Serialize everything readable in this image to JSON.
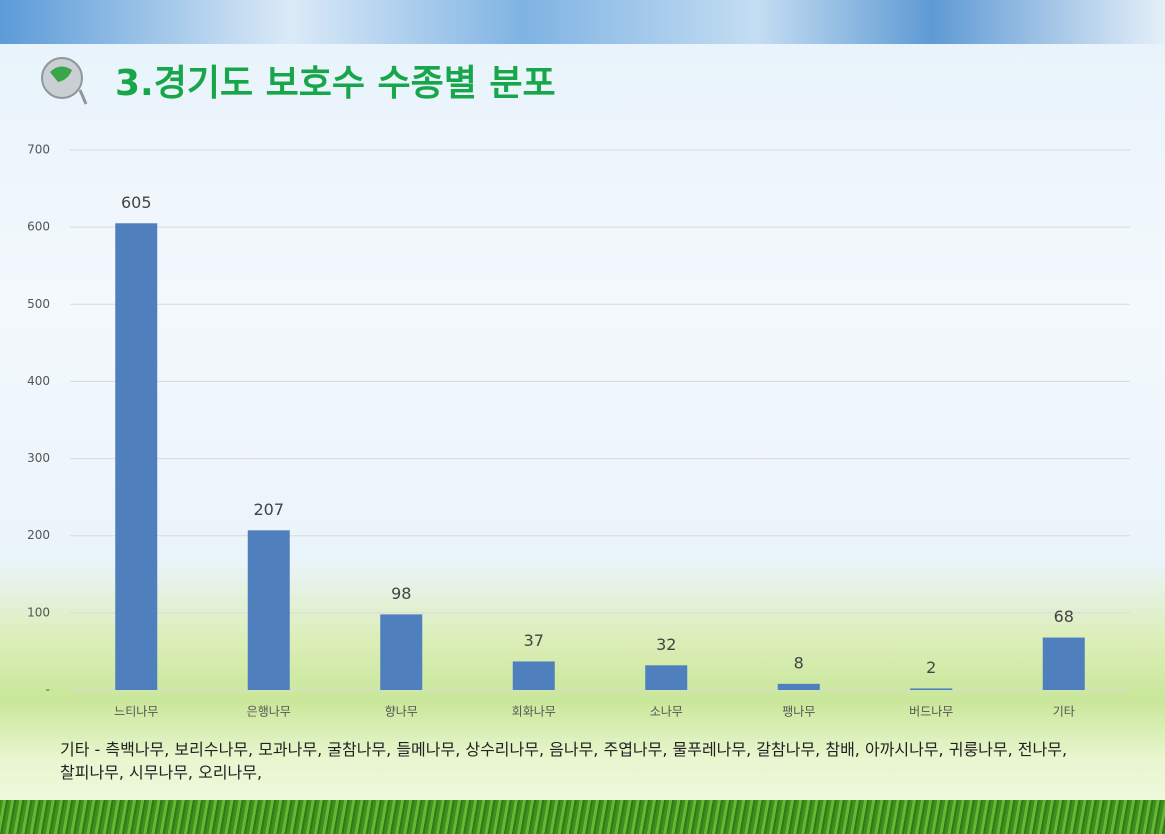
{
  "chart_data": {
    "type": "bar",
    "title": "3.경기도 보호수 수종별 분포",
    "categories": [
      "느티나무",
      "은행나무",
      "향나무",
      "회화나무",
      "소나무",
      "팽나무",
      "버드나무",
      "기타"
    ],
    "values": [
      605,
      207,
      98,
      37,
      32,
      8,
      2,
      68
    ],
    "color": "#4f7fbd",
    "ylim": [
      0,
      700
    ],
    "yticks": [
      {
        "value": 0,
        "label": "-"
      },
      100,
      200,
      300,
      400,
      500,
      600,
      700
    ],
    "grid": true
  },
  "note": "기타 - 측백나무, 보리수나무, 모과나무, 굴참나무, 들메나무, 상수리나무, 음나무, 주엽나무, 물푸레나무, 갈참나무, 참배, 아까시나무, 귀룽나무, 전나무, 찰피나무, 시무나무, 오리나무,"
}
